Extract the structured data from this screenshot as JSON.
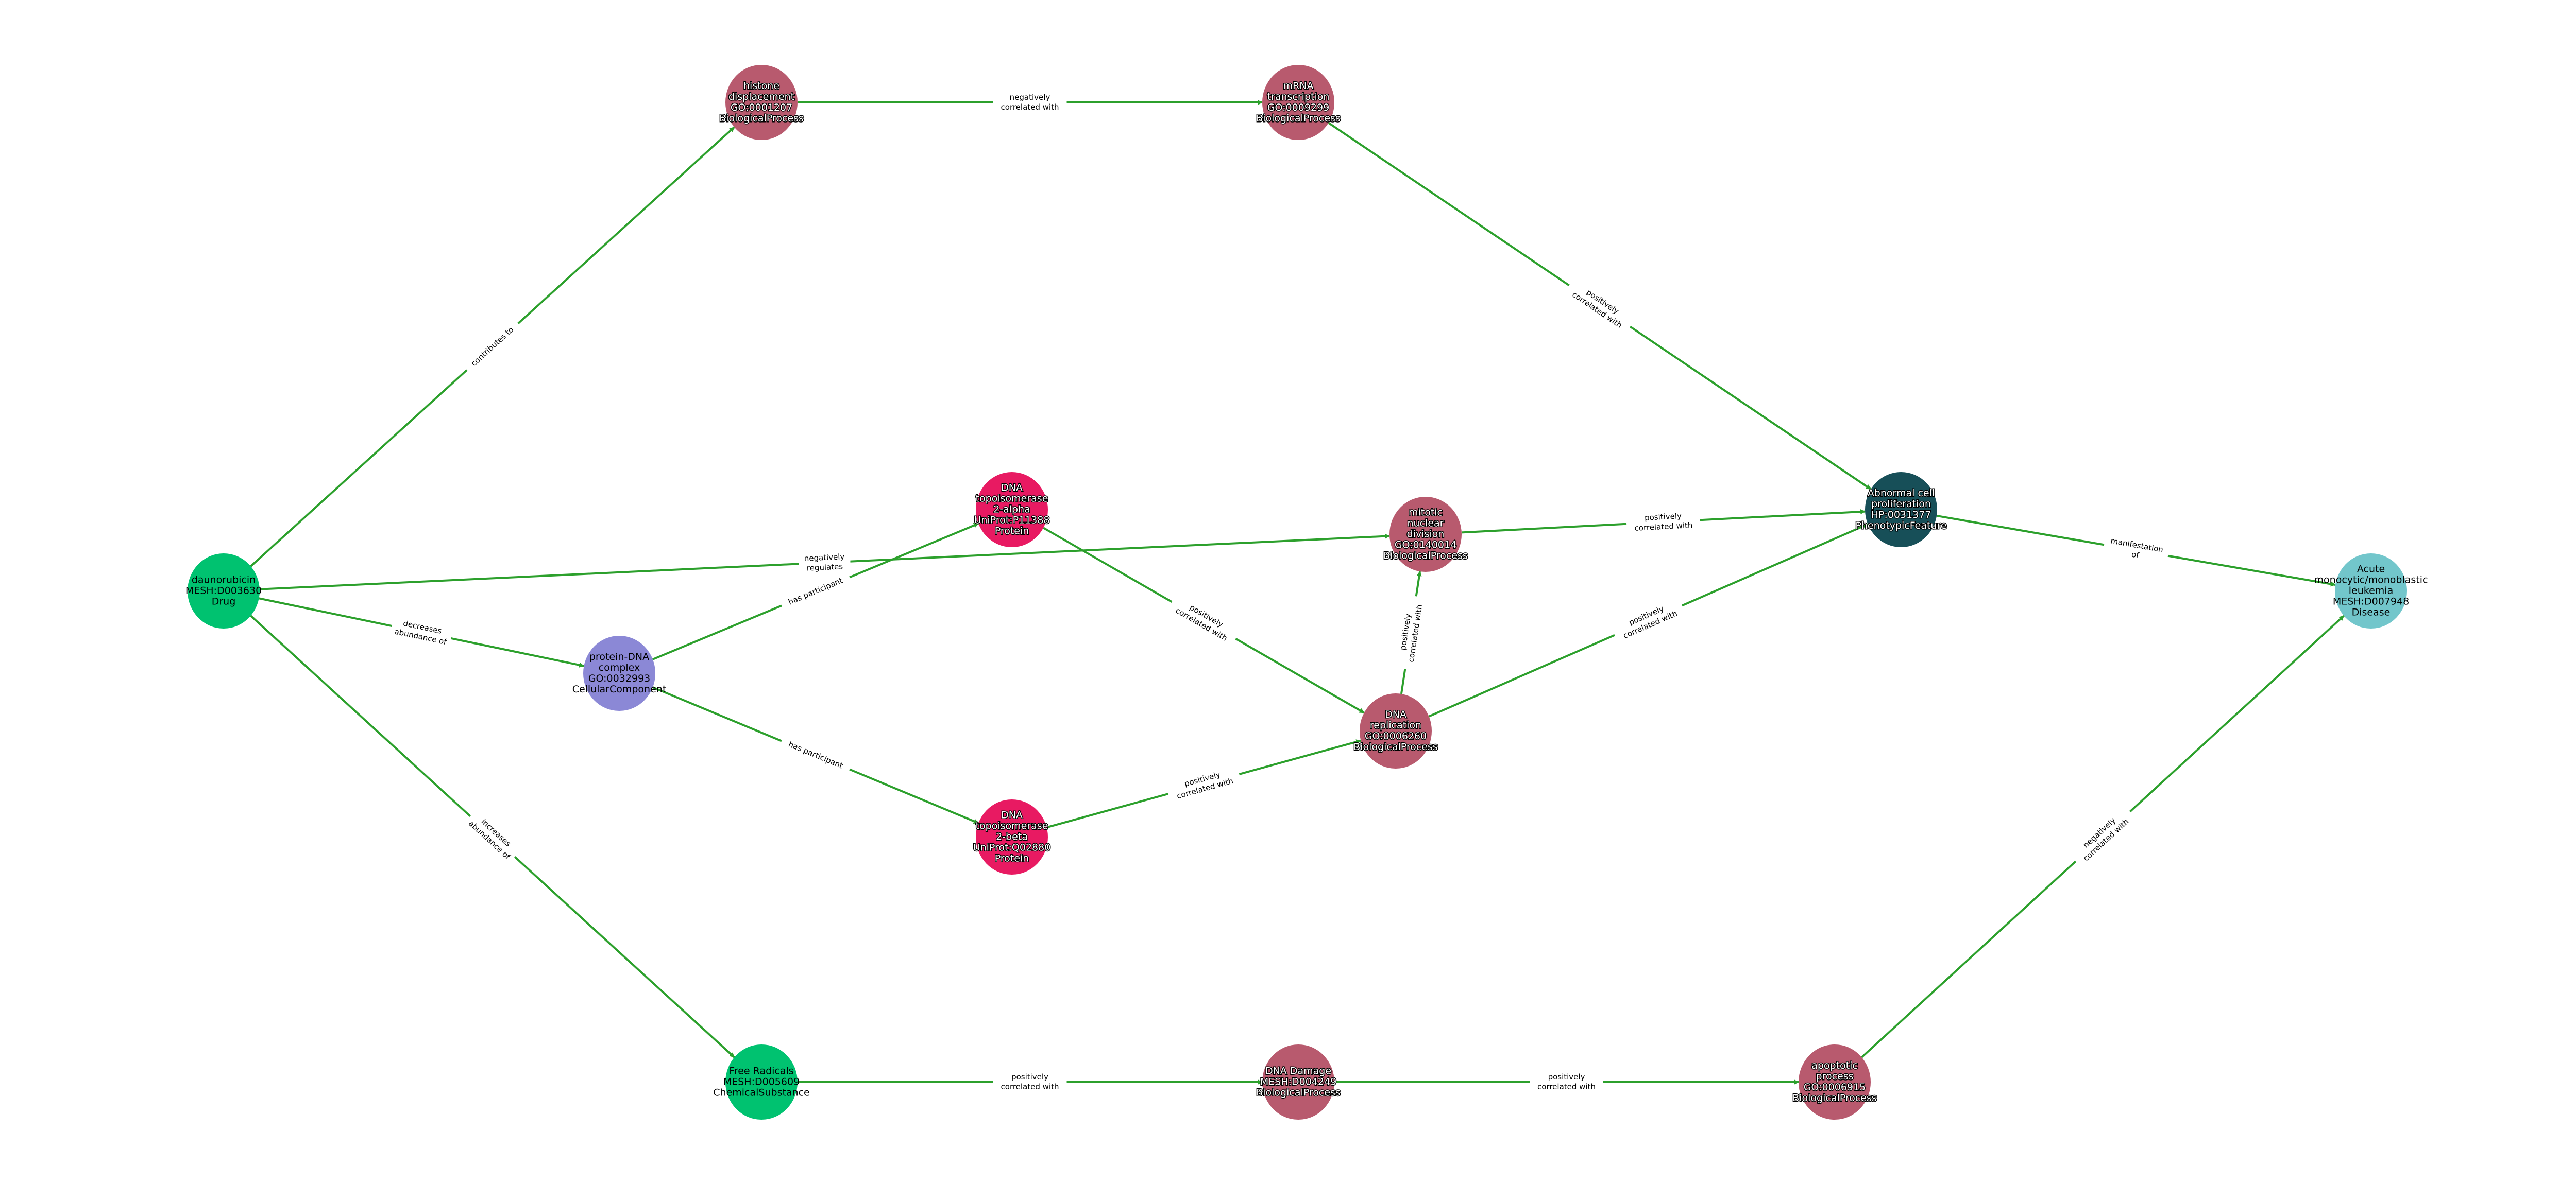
{
  "colors": {
    "edge": "#2ca02c",
    "BiologicalProcess": "#b85a6e",
    "Drug": "#00c270",
    "ChemicalSubstance": "#00c270",
    "Protein": "#e81a62",
    "CellularComponent": "#8b88d6",
    "PhenotypicFeature": "#174f58",
    "Disease": "#72c6cb"
  },
  "nodes": [
    {
      "id": "daunorubicin",
      "type": "Drug",
      "lines": [
        "daunorubicin",
        "MESH:D003630",
        "Drug"
      ],
      "text_style": "dark"
    },
    {
      "id": "histone",
      "type": "BiologicalProcess",
      "lines": [
        "histone",
        "displacement",
        "GO:0001207",
        "BiologicalProcess"
      ],
      "text_style": "light"
    },
    {
      "id": "mrna",
      "type": "BiologicalProcess",
      "lines": [
        "mRNA",
        "transcription",
        "GO:0009299",
        "BiologicalProcess"
      ],
      "text_style": "light"
    },
    {
      "id": "topo_alpha",
      "type": "Protein",
      "lines": [
        "DNA",
        "topoisomerase",
        "2-alpha",
        "UniProt:P11388",
        "Protein"
      ],
      "text_style": "light"
    },
    {
      "id": "mitotic",
      "type": "BiologicalProcess",
      "lines": [
        "mitotic",
        "nuclear",
        "division",
        "GO:0140014",
        "BiologicalProcess"
      ],
      "text_style": "light"
    },
    {
      "id": "abnormal",
      "type": "PhenotypicFeature",
      "lines": [
        "Abnormal cell",
        "proliferation",
        "HP:0031377",
        "PhenotypicFeature"
      ],
      "text_style": "light"
    },
    {
      "id": "acute",
      "type": "Disease",
      "lines": [
        "Acute",
        "monocytic/monoblastic",
        "leukemia",
        "MESH:D007948",
        "Disease"
      ],
      "text_style": "dark"
    },
    {
      "id": "protein_dna",
      "type": "CellularComponent",
      "lines": [
        "protein-DNA",
        "complex",
        "GO:0032993",
        "CellularComponent"
      ],
      "text_style": "dark"
    },
    {
      "id": "replication",
      "type": "BiologicalProcess",
      "lines": [
        "DNA",
        "replication",
        "GO:0006260",
        "BiologicalProcess"
      ],
      "text_style": "light"
    },
    {
      "id": "topo_beta",
      "type": "Protein",
      "lines": [
        "DNA",
        "topoisomerase",
        "2-beta",
        "UniProt:Q02880",
        "Protein"
      ],
      "text_style": "light"
    },
    {
      "id": "free_radicals",
      "type": "ChemicalSubstance",
      "lines": [
        "Free Radicals",
        "MESH:D005609",
        "ChemicalSubstance"
      ],
      "text_style": "dark"
    },
    {
      "id": "dna_damage",
      "type": "BiologicalProcess",
      "lines": [
        "DNA Damage",
        "MESH:D004249",
        "BiologicalProcess"
      ],
      "text_style": "light"
    },
    {
      "id": "apoptotic",
      "type": "BiologicalProcess",
      "lines": [
        "apoptotic",
        "process",
        "GO:0006915",
        "BiologicalProcess"
      ],
      "text_style": "light"
    }
  ],
  "edges": [
    {
      "source": "daunorubicin",
      "target": "histone",
      "lines": [
        "contributes to"
      ]
    },
    {
      "source": "histone",
      "target": "mrna",
      "lines": [
        "negatively",
        "correlated with"
      ]
    },
    {
      "source": "mrna",
      "target": "abnormal",
      "lines": [
        "positively",
        "correlated with"
      ]
    },
    {
      "source": "daunorubicin",
      "target": "mitotic",
      "lines": [
        "negatively",
        "regulates"
      ]
    },
    {
      "source": "daunorubicin",
      "target": "protein_dna",
      "lines": [
        "decreases",
        "abundance of"
      ]
    },
    {
      "source": "daunorubicin",
      "target": "free_radicals",
      "lines": [
        "increases",
        "abundance of"
      ]
    },
    {
      "source": "protein_dna",
      "target": "topo_alpha",
      "lines": [
        "has participant"
      ]
    },
    {
      "source": "protein_dna",
      "target": "topo_beta",
      "lines": [
        "has participant"
      ]
    },
    {
      "source": "topo_alpha",
      "target": "replication",
      "lines": [
        "positively",
        "correlated with"
      ]
    },
    {
      "source": "topo_beta",
      "target": "replication",
      "lines": [
        "positively",
        "correlated with"
      ]
    },
    {
      "source": "replication",
      "target": "mitotic",
      "lines": [
        "positively",
        "correlated with"
      ]
    },
    {
      "source": "replication",
      "target": "abnormal",
      "lines": [
        "positively",
        "correlated with"
      ]
    },
    {
      "source": "mitotic",
      "target": "abnormal",
      "lines": [
        "positively",
        "correlated with"
      ]
    },
    {
      "source": "abnormal",
      "target": "acute",
      "lines": [
        "manifestation",
        "of"
      ]
    },
    {
      "source": "free_radicals",
      "target": "dna_damage",
      "lines": [
        "positively",
        "correlated with"
      ]
    },
    {
      "source": "dna_damage",
      "target": "apoptotic",
      "lines": [
        "positively",
        "correlated with"
      ]
    },
    {
      "source": "apoptotic",
      "target": "acute",
      "lines": [
        "negatively",
        "correlated with"
      ]
    }
  ]
}
